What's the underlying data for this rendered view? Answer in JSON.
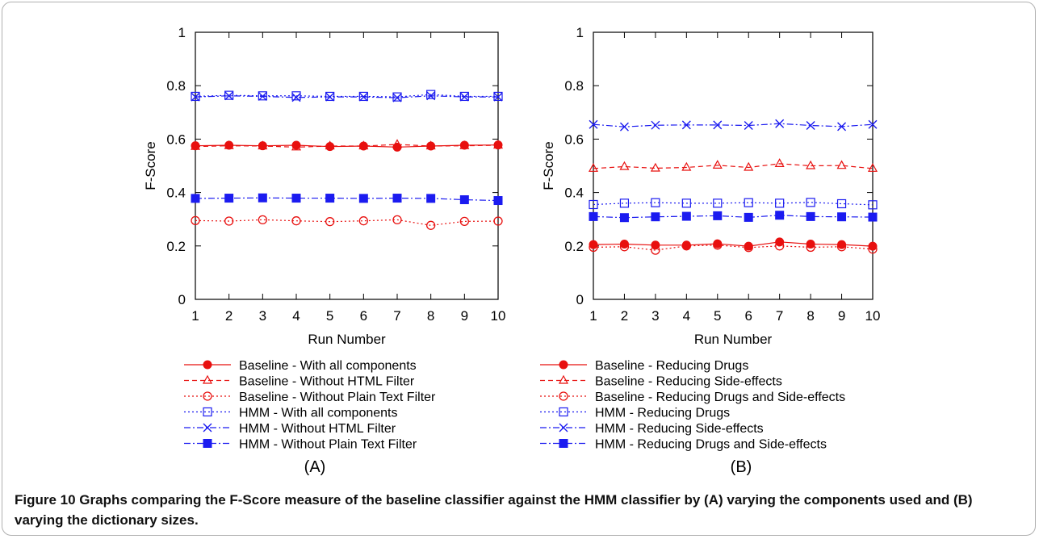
{
  "caption": {
    "text": "Figure 10 Graphs comparing the F-Score measure of the baseline classifier against the HMM classifier by (A) varying the components used and (B) varying the dictionary sizes."
  },
  "colors": {
    "red": "#e8100f",
    "blue": "#1b1bf0"
  },
  "chart_data": [
    {
      "type": "line",
      "panel_label": "(A)",
      "xlabel": "Run Number",
      "ylabel": "F-Score",
      "xlim": [
        1,
        10
      ],
      "ylim": [
        0,
        1
      ],
      "x_ticks": [
        1,
        2,
        3,
        4,
        5,
        6,
        7,
        8,
        9,
        10
      ],
      "y_ticks": [
        0,
        0.2,
        0.4,
        0.6,
        0.8,
        1
      ],
      "y_tick_labels": [
        "0",
        "0.2",
        "0.4",
        "0.6",
        "0.8",
        "1"
      ],
      "grid": false,
      "legend_position": "below",
      "x": [
        1,
        2,
        3,
        4,
        5,
        6,
        7,
        8,
        9,
        10
      ],
      "series": [
        {
          "name": "Baseline - With all components",
          "color": "red",
          "dash": "solid",
          "marker": "filled-circle",
          "values": [
            0.575,
            0.577,
            0.575,
            0.577,
            0.572,
            0.574,
            0.57,
            0.574,
            0.577,
            0.578
          ]
        },
        {
          "name": "Baseline - Without HTML Filter",
          "color": "red",
          "dash": "dashed",
          "marker": "triangle",
          "values": [
            0.572,
            0.575,
            0.574,
            0.57,
            0.574,
            0.574,
            0.58,
            0.574,
            0.575,
            0.577
          ]
        },
        {
          "name": "Baseline - Without Plain Text Filter",
          "color": "red",
          "dash": "dotted",
          "marker": "open-circle",
          "values": [
            0.295,
            0.293,
            0.298,
            0.294,
            0.291,
            0.294,
            0.298,
            0.277,
            0.292,
            0.293
          ]
        },
        {
          "name": "HMM - With all components",
          "color": "blue",
          "dash": "dotted",
          "marker": "open-square",
          "values": [
            0.76,
            0.764,
            0.762,
            0.762,
            0.76,
            0.76,
            0.758,
            0.767,
            0.76,
            0.76
          ]
        },
        {
          "name": "HMM - Without HTML Filter",
          "color": "blue",
          "dash": "dashdot",
          "marker": "cross",
          "values": [
            0.758,
            0.762,
            0.76,
            0.756,
            0.758,
            0.758,
            0.755,
            0.762,
            0.758,
            0.758
          ]
        },
        {
          "name": "HMM - Without Plain Text Filter",
          "color": "blue",
          "dash": "dashdot",
          "marker": "filled-square",
          "values": [
            0.378,
            0.379,
            0.38,
            0.379,
            0.379,
            0.378,
            0.379,
            0.378,
            0.373,
            0.37
          ]
        }
      ]
    },
    {
      "type": "line",
      "panel_label": "(B)",
      "xlabel": "Run Number",
      "ylabel": "F-Score",
      "xlim": [
        1,
        10
      ],
      "ylim": [
        0,
        1
      ],
      "x_ticks": [
        1,
        2,
        3,
        4,
        5,
        6,
        7,
        8,
        9,
        10
      ],
      "y_ticks": [
        0,
        0.2,
        0.4,
        0.6,
        0.8,
        1
      ],
      "y_tick_labels": [
        "0",
        "0.2",
        "0.4",
        "0.6",
        "0.8",
        "1"
      ],
      "grid": false,
      "legend_position": "below",
      "x": [
        1,
        2,
        3,
        4,
        5,
        6,
        7,
        8,
        9,
        10
      ],
      "series": [
        {
          "name": "Baseline - Reducing Drugs",
          "color": "red",
          "dash": "solid",
          "marker": "filled-circle",
          "values": [
            0.205,
            0.207,
            0.203,
            0.203,
            0.208,
            0.199,
            0.215,
            0.207,
            0.205,
            0.199
          ]
        },
        {
          "name": "Baseline - Reducing Side-effects",
          "color": "red",
          "dash": "dashed",
          "marker": "triangle",
          "values": [
            0.49,
            0.497,
            0.491,
            0.494,
            0.502,
            0.494,
            0.508,
            0.5,
            0.501,
            0.49
          ]
        },
        {
          "name": "Baseline - Reducing Drugs and Side-effects",
          "color": "red",
          "dash": "dotted",
          "marker": "open-circle",
          "values": [
            0.195,
            0.197,
            0.184,
            0.2,
            0.203,
            0.194,
            0.2,
            0.195,
            0.197,
            0.188
          ]
        },
        {
          "name": "HMM - Reducing Drugs",
          "color": "blue",
          "dash": "dotted",
          "marker": "open-square",
          "values": [
            0.355,
            0.36,
            0.362,
            0.36,
            0.36,
            0.362,
            0.36,
            0.363,
            0.358,
            0.354
          ]
        },
        {
          "name": "HMM - Reducing Side-effects",
          "color": "blue",
          "dash": "dashdot",
          "marker": "cross",
          "values": [
            0.655,
            0.646,
            0.652,
            0.653,
            0.653,
            0.651,
            0.658,
            0.651,
            0.647,
            0.655
          ]
        },
        {
          "name": "HMM - Reducing Drugs and Side-effects",
          "color": "blue",
          "dash": "dashdot",
          "marker": "filled-square",
          "values": [
            0.31,
            0.306,
            0.309,
            0.311,
            0.313,
            0.307,
            0.315,
            0.31,
            0.309,
            0.308
          ]
        }
      ]
    }
  ]
}
